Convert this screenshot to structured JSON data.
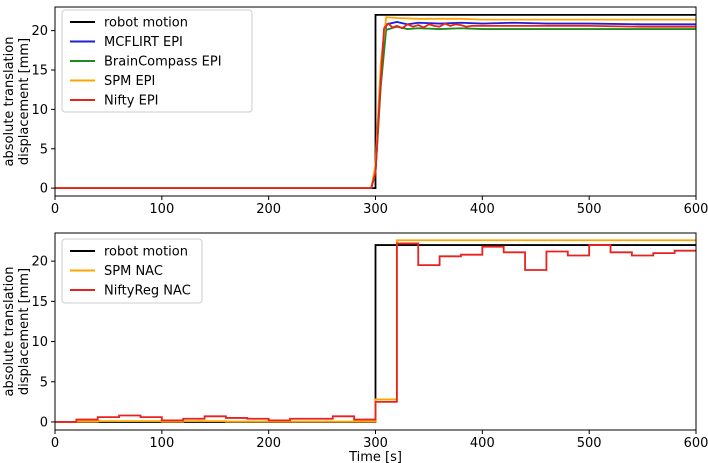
{
  "chart_data": [
    {
      "type": "line",
      "xlabel": "",
      "ylabel": [
        "absolute translation",
        "displacement [mm]"
      ],
      "xlim": [
        0,
        600
      ],
      "ylim": [
        -1,
        23
      ],
      "xticks": [
        0,
        100,
        200,
        300,
        400,
        500,
        600
      ],
      "yticks": [
        0,
        5,
        10,
        15,
        20
      ],
      "legend_position": "top-left",
      "grid": false,
      "series": [
        {
          "name": "robot motion",
          "color": "#000000",
          "x": [
            0,
            300,
            300,
            600
          ],
          "y": [
            0,
            0,
            22,
            22
          ]
        },
        {
          "name": "MCFLIRT EPI",
          "color": "#1f1fd6",
          "x": [
            0,
            296,
            300,
            305,
            310,
            320,
            330,
            340,
            360,
            380,
            400,
            430,
            460,
            500,
            550,
            600
          ],
          "y": [
            0,
            0,
            2,
            14,
            20.8,
            21.1,
            20.8,
            21.0,
            20.9,
            21.0,
            20.9,
            21.0,
            20.9,
            20.9,
            20.8,
            20.8
          ]
        },
        {
          "name": "BrainCompass EPI",
          "color": "#1f8a1f",
          "x": [
            0,
            296,
            300,
            305,
            310,
            320,
            330,
            340,
            360,
            380,
            400,
            450,
            500,
            600
          ],
          "y": [
            0,
            0,
            2,
            13,
            20.1,
            20.5,
            20.2,
            20.3,
            20.2,
            20.3,
            20.2,
            20.2,
            20.2,
            20.2
          ]
        },
        {
          "name": "SPM EPI",
          "color": "#ffa500",
          "x": [
            0,
            296,
            300,
            305,
            310,
            320,
            340,
            380,
            400,
            450,
            500,
            600
          ],
          "y": [
            0,
            0,
            3,
            16,
            21.7,
            21.6,
            21.5,
            21.5,
            21.4,
            21.4,
            21.4,
            21.4
          ]
        },
        {
          "name": "Nifty EPI",
          "color": "#e8231f",
          "x": [
            0,
            296,
            300,
            305,
            308,
            312,
            316,
            320,
            325,
            330,
            335,
            340,
            345,
            350,
            355,
            360,
            365,
            370,
            375,
            380,
            385,
            390,
            400,
            450,
            500,
            550,
            600
          ],
          "y": [
            0,
            0,
            2,
            14,
            20.3,
            20.9,
            20.4,
            20.6,
            20.3,
            20.8,
            20.5,
            20.7,
            20.4,
            20.8,
            20.6,
            20.5,
            20.9,
            20.6,
            20.8,
            20.7,
            20.5,
            20.6,
            20.6,
            20.6,
            20.6,
            20.5,
            20.5
          ]
        }
      ]
    },
    {
      "type": "line",
      "xlabel": "Time [s]",
      "ylabel": [
        "absolute translation",
        "displacement [mm]"
      ],
      "xlim": [
        0,
        600
      ],
      "ylim": [
        -1,
        23.5
      ],
      "xticks": [
        0,
        100,
        200,
        300,
        400,
        500,
        600
      ],
      "yticks": [
        0,
        5,
        10,
        15,
        20
      ],
      "legend_position": "top-left",
      "grid": false,
      "series": [
        {
          "name": "robot motion",
          "color": "#000000",
          "x": [
            0,
            300,
            300,
            600
          ],
          "y": [
            0,
            0,
            22,
            22
          ]
        },
        {
          "name": "SPM NAC",
          "color": "#ffa500",
          "step": true,
          "x": [
            0,
            20,
            40,
            60,
            80,
            100,
            120,
            140,
            160,
            180,
            200,
            220,
            240,
            260,
            280,
            300,
            320,
            340,
            360,
            380,
            400,
            420,
            440,
            460,
            480,
            500,
            520,
            540,
            560,
            580,
            600
          ],
          "y": [
            0,
            0.05,
            0.1,
            0.1,
            0.1,
            0.05,
            0.1,
            0.1,
            0.05,
            0.05,
            0.05,
            0.05,
            0.05,
            0.05,
            0.05,
            2.8,
            22.6,
            22.6,
            22.6,
            22.6,
            22.6,
            22.6,
            22.6,
            22.6,
            22.6,
            22.6,
            22.6,
            22.6,
            22.6,
            22.6,
            22.6
          ]
        },
        {
          "name": "NiftyReg NAC",
          "color": "#e8231f",
          "step": true,
          "x": [
            0,
            20,
            40,
            60,
            80,
            100,
            120,
            140,
            160,
            180,
            200,
            220,
            240,
            260,
            280,
            300,
            320,
            340,
            360,
            380,
            400,
            420,
            440,
            460,
            480,
            500,
            520,
            540,
            560,
            580,
            600
          ],
          "y": [
            0,
            0.3,
            0.6,
            0.8,
            0.6,
            0.2,
            0.4,
            0.7,
            0.5,
            0.4,
            0.2,
            0.4,
            0.4,
            0.7,
            0.3,
            2.5,
            22.2,
            19.5,
            20.6,
            20.8,
            21.8,
            21.1,
            18.9,
            21.2,
            20.7,
            22.0,
            21.1,
            20.7,
            21.0,
            21.3,
            21.4
          ]
        }
      ]
    }
  ]
}
